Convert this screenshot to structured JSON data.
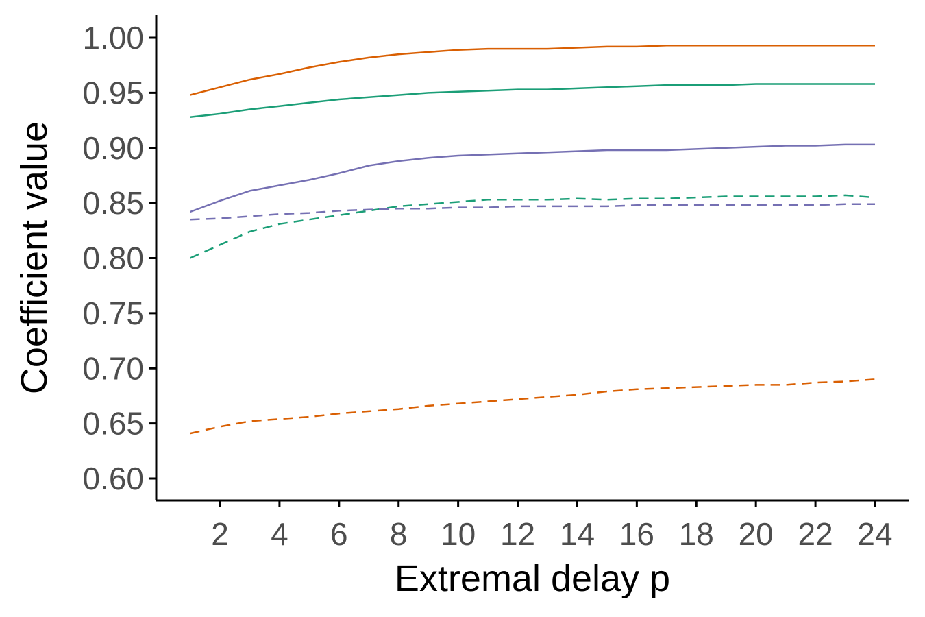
{
  "chart_data": {
    "type": "line",
    "xlabel": "Extremal delay p",
    "ylabel": "Coefficient value",
    "xlim": [
      0,
      24.5
    ],
    "ylim": [
      0.58,
      1.02
    ],
    "xticks": [
      2,
      4,
      6,
      8,
      10,
      12,
      14,
      16,
      18,
      20,
      22,
      24
    ],
    "yticks": [
      0.6,
      0.65,
      0.7,
      0.75,
      0.8,
      0.85,
      0.9,
      0.95,
      1.0
    ],
    "ytick_labels": [
      "0.60",
      "0.65",
      "0.70",
      "0.75",
      "0.80",
      "0.85",
      "0.90",
      "0.95",
      "1.00"
    ],
    "xtick_labels": [
      "2",
      "4",
      "6",
      "8",
      "10",
      "12",
      "14",
      "16",
      "18",
      "20",
      "22",
      "24"
    ],
    "grid": false,
    "x": [
      1,
      2,
      3,
      4,
      5,
      6,
      7,
      8,
      9,
      10,
      11,
      12,
      13,
      14,
      15,
      16,
      17,
      18,
      19,
      20,
      21,
      22,
      23,
      24
    ],
    "series": [
      {
        "color": "#d95f02",
        "dash": "solid",
        "values": [
          0.948,
          0.955,
          0.962,
          0.967,
          0.973,
          0.978,
          0.982,
          0.985,
          0.987,
          0.989,
          0.99,
          0.99,
          0.99,
          0.991,
          0.992,
          0.992,
          0.993,
          0.993,
          0.993,
          0.993,
          0.993,
          0.993,
          0.993,
          0.993
        ]
      },
      {
        "color": "#1b9e77",
        "dash": "solid",
        "values": [
          0.928,
          0.931,
          0.935,
          0.938,
          0.941,
          0.944,
          0.946,
          0.948,
          0.95,
          0.951,
          0.952,
          0.953,
          0.953,
          0.954,
          0.955,
          0.956,
          0.957,
          0.957,
          0.957,
          0.958,
          0.958,
          0.958,
          0.958,
          0.958
        ]
      },
      {
        "color": "#7570b3",
        "dash": "solid",
        "values": [
          0.842,
          0.852,
          0.861,
          0.866,
          0.871,
          0.877,
          0.884,
          0.888,
          0.891,
          0.893,
          0.894,
          0.895,
          0.896,
          0.897,
          0.898,
          0.898,
          0.898,
          0.899,
          0.9,
          0.901,
          0.902,
          0.902,
          0.903,
          0.903
        ]
      },
      {
        "color": "#1b9e77",
        "dash": "dashed",
        "values": [
          0.8,
          0.812,
          0.824,
          0.831,
          0.835,
          0.839,
          0.843,
          0.847,
          0.849,
          0.851,
          0.853,
          0.853,
          0.853,
          0.854,
          0.853,
          0.854,
          0.854,
          0.855,
          0.856,
          0.856,
          0.856,
          0.856,
          0.857,
          0.855
        ]
      },
      {
        "color": "#7570b3",
        "dash": "dashed",
        "values": [
          0.835,
          0.836,
          0.838,
          0.84,
          0.841,
          0.843,
          0.844,
          0.845,
          0.845,
          0.846,
          0.846,
          0.847,
          0.847,
          0.847,
          0.847,
          0.848,
          0.848,
          0.848,
          0.848,
          0.848,
          0.848,
          0.848,
          0.849,
          0.849
        ]
      },
      {
        "color": "#d95f02",
        "dash": "dashed",
        "values": [
          0.641,
          0.647,
          0.652,
          0.654,
          0.656,
          0.659,
          0.661,
          0.663,
          0.666,
          0.668,
          0.67,
          0.672,
          0.674,
          0.676,
          0.679,
          0.681,
          0.682,
          0.683,
          0.684,
          0.685,
          0.685,
          0.687,
          0.688,
          0.69
        ]
      }
    ]
  }
}
